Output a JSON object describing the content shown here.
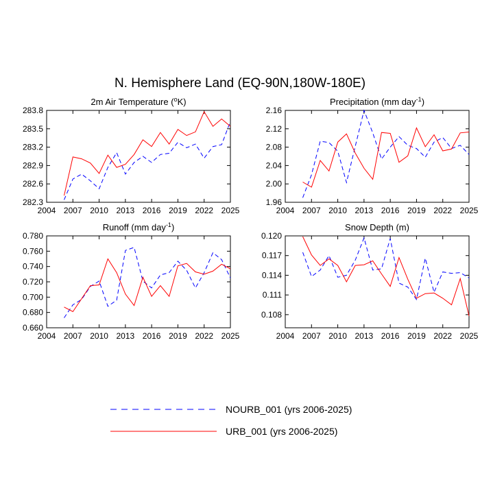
{
  "figure": {
    "title": "N. Hemisphere Land (EQ-90N,180W-180E)"
  },
  "legend": {
    "entries": [
      {
        "label": "NOURB_001 (yrs 2006-2025)",
        "color": "#0000ff",
        "dash": "dashed"
      },
      {
        "label": "URB_001 (yrs 2006-2025)",
        "color": "#ff0000",
        "dash": "solid"
      }
    ]
  },
  "chart_data": [
    {
      "type": "line",
      "title": "2m Air Temperature (°K)",
      "title_main": "2m Air Temperature (",
      "title_sup": "o",
      "title_tail": "K)",
      "xlim": [
        2004,
        2025
      ],
      "xticks": [
        "2004",
        "2007",
        "2010",
        "2013",
        "2016",
        "2019",
        "2022",
        "2025"
      ],
      "ylim": [
        282.3,
        283.8
      ],
      "yticks": [
        "282.3",
        "282.6",
        "282.9",
        "283.2",
        "283.5",
        "283.8"
      ],
      "x": [
        2006,
        2007,
        2008,
        2009,
        2010,
        2011,
        2012,
        2013,
        2014,
        2015,
        2016,
        2017,
        2018,
        2019,
        2020,
        2021,
        2022,
        2023,
        2024,
        2025
      ],
      "series": [
        {
          "name": "NOURB_001",
          "values": [
            282.34,
            282.68,
            282.76,
            282.65,
            282.52,
            282.87,
            283.11,
            282.76,
            282.95,
            283.05,
            282.95,
            283.08,
            283.1,
            283.28,
            283.19,
            283.25,
            283.02,
            283.21,
            283.24,
            283.62
          ]
        },
        {
          "name": "URB_001",
          "values": [
            282.41,
            283.04,
            283.01,
            282.94,
            282.77,
            283.07,
            282.87,
            282.92,
            283.08,
            283.32,
            283.21,
            283.44,
            283.25,
            283.49,
            283.39,
            283.45,
            283.78,
            283.54,
            283.66,
            283.54
          ]
        }
      ]
    },
    {
      "type": "line",
      "title": "Precipitation (mm day-1)",
      "title_main": "Precipitation (mm day",
      "title_sup": "-1",
      "title_tail": ")",
      "xlim": [
        2004,
        2025
      ],
      "xticks": [
        "2004",
        "2007",
        "2010",
        "2013",
        "2016",
        "2019",
        "2022",
        "2025"
      ],
      "ylim": [
        1.96,
        2.16
      ],
      "yticks": [
        "1.96",
        "2.00",
        "2.04",
        "2.08",
        "2.12",
        "2.16"
      ],
      "x": [
        2006,
        2007,
        2008,
        2009,
        2010,
        2011,
        2012,
        2013,
        2014,
        2015,
        2016,
        2017,
        2018,
        2019,
        2020,
        2021,
        2022,
        2023,
        2024,
        2025
      ],
      "series": [
        {
          "name": "NOURB_001",
          "values": [
            1.97,
            2.02,
            2.093,
            2.09,
            2.071,
            2.003,
            2.082,
            2.16,
            2.111,
            2.054,
            2.08,
            2.103,
            2.084,
            2.077,
            2.058,
            2.091,
            2.101,
            2.077,
            2.084,
            2.064
          ]
        },
        {
          "name": "URB_001",
          "values": [
            2.004,
            1.993,
            2.051,
            2.028,
            2.091,
            2.109,
            2.067,
            2.034,
            2.01,
            2.112,
            2.11,
            2.047,
            2.061,
            2.122,
            2.081,
            2.107,
            2.072,
            2.076,
            2.111,
            2.113
          ]
        }
      ]
    },
    {
      "type": "line",
      "title": "Runoff (mm day-1)",
      "title_main": "Runoff (mm day",
      "title_sup": "-1",
      "title_tail": ")",
      "xlim": [
        2004,
        2025
      ],
      "xticks": [
        "2004",
        "2007",
        "2010",
        "2013",
        "2016",
        "2019",
        "2022",
        "2025"
      ],
      "ylim": [
        0.66,
        0.78
      ],
      "yticks": [
        "0.660",
        "0.680",
        "0.700",
        "0.720",
        "0.740",
        "0.760",
        "0.780"
      ],
      "x": [
        2006,
        2007,
        2008,
        2009,
        2010,
        2011,
        2012,
        2013,
        2014,
        2015,
        2016,
        2017,
        2018,
        2019,
        2020,
        2021,
        2022,
        2023,
        2024,
        2025
      ],
      "series": [
        {
          "name": "NOURB_001",
          "values": [
            0.673,
            0.69,
            0.697,
            0.714,
            0.721,
            0.688,
            0.696,
            0.761,
            0.765,
            0.721,
            0.712,
            0.729,
            0.732,
            0.747,
            0.735,
            0.712,
            0.732,
            0.758,
            0.749,
            0.725
          ]
        },
        {
          "name": "URB_001",
          "values": [
            0.687,
            0.681,
            0.698,
            0.715,
            0.716,
            0.75,
            0.732,
            0.704,
            0.689,
            0.726,
            0.701,
            0.715,
            0.701,
            0.741,
            0.744,
            0.733,
            0.73,
            0.734,
            0.743,
            0.737
          ]
        }
      ]
    },
    {
      "type": "line",
      "title": "Snow Depth (m)",
      "title_main": "Snow Depth (m)",
      "title_sup": "",
      "title_tail": "",
      "xlim": [
        2004,
        2025
      ],
      "xticks": [
        "2004",
        "2007",
        "2010",
        "2013",
        "2016",
        "2019",
        "2022",
        "2025"
      ],
      "ylim": [
        0.106,
        0.12
      ],
      "yticks": [
        "0.120",
        "0.117",
        "0.114",
        "0.111",
        "0.108"
      ],
      "x": [
        2006,
        2007,
        2008,
        2009,
        2010,
        2011,
        2012,
        2013,
        2014,
        2015,
        2016,
        2017,
        2018,
        2019,
        2020,
        2021,
        2022,
        2023,
        2024,
        2025
      ],
      "series": [
        {
          "name": "NOURB_001",
          "values": [
            0.1175,
            0.1138,
            0.1148,
            0.117,
            0.1137,
            0.114,
            0.1163,
            0.1197,
            0.1148,
            0.115,
            0.1196,
            0.1128,
            0.1122,
            0.1103,
            0.1166,
            0.1114,
            0.1145,
            0.1143,
            0.1144,
            0.1136
          ]
        },
        {
          "name": "URB_001",
          "values": [
            0.1199,
            0.1171,
            0.1155,
            0.1165,
            0.1155,
            0.113,
            0.1155,
            0.1156,
            0.1162,
            0.1142,
            0.1123,
            0.1167,
            0.1134,
            0.1105,
            0.1112,
            0.1113,
            0.1105,
            0.1095,
            0.1135,
            0.1078
          ]
        }
      ]
    }
  ]
}
